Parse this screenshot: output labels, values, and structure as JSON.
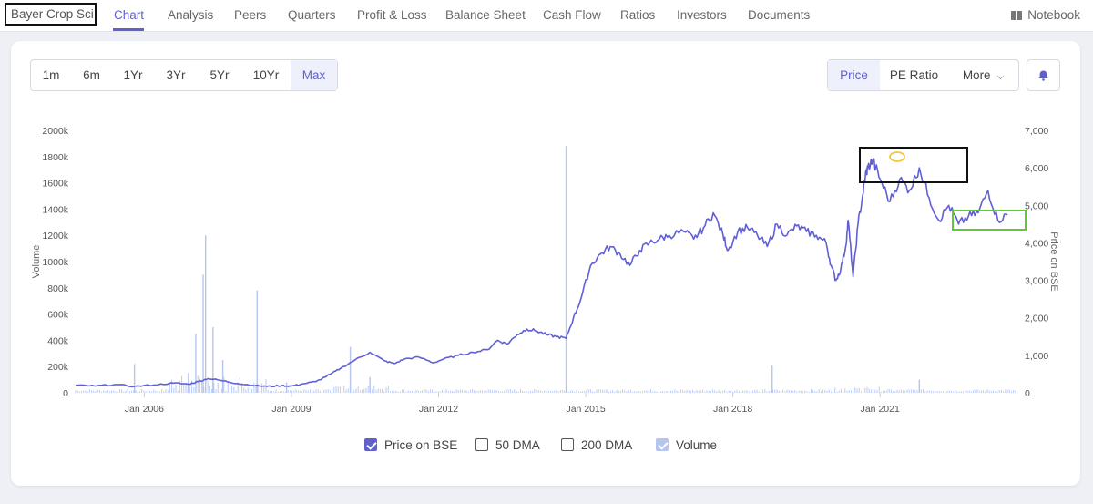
{
  "nav": {
    "company": "Bayer Crop Sci.",
    "items": [
      {
        "label": "Chart",
        "active": true
      },
      {
        "label": "Analysis"
      },
      {
        "label": "Peers"
      },
      {
        "label": "Quarters"
      },
      {
        "label": "Profit & Loss"
      },
      {
        "label": "Balance Sheet"
      },
      {
        "label": "Cash Flow"
      },
      {
        "label": "Ratios"
      },
      {
        "label": "Investors"
      },
      {
        "label": "Documents"
      }
    ],
    "notebook": "Notebook"
  },
  "ranges": [
    "1m",
    "6m",
    "1Yr",
    "3Yr",
    "5Yr",
    "10Yr",
    "Max"
  ],
  "active_range": "Max",
  "chart_types": [
    "Price",
    "PE Ratio",
    "More"
  ],
  "active_chart_type": "Price",
  "legend": {
    "price": "Price on BSE",
    "dma50": "50 DMA",
    "dma200": "200 DMA",
    "volume": "Volume"
  },
  "colors": {
    "accent": "#6161c9",
    "price_line": "#6060d6",
    "volume_bar": "#b5c5f0",
    "highlight_black": "#111111",
    "highlight_green": "#5ec937",
    "highlight_yellow": "#f2c744"
  },
  "icons": {
    "bell": "bell-icon",
    "chevron": "chevron-down-icon",
    "notebook": "notebook-icon",
    "checkbox": "check-icon"
  },
  "chart_data": {
    "type": "line",
    "title": "",
    "xlabel": "",
    "ylabel": "Price on BSE",
    "y2label": "Volume",
    "x_ticks": [
      "Jan 2006",
      "Jan 2009",
      "Jan 2012",
      "Jan 2015",
      "Jan 2018",
      "Jan 2021"
    ],
    "xlim": [
      2004.6,
      2023.8
    ],
    "price_ticks": [
      0,
      1000,
      2000,
      3000,
      4000,
      5000,
      6000,
      7000
    ],
    "price_tick_labels": [
      "0",
      "1,000",
      "2,000",
      "3,000",
      "4,000",
      "5,000",
      "6,000",
      "7,000"
    ],
    "ylim": [
      0,
      7000
    ],
    "volume_ticks": [
      0,
      200000,
      400000,
      600000,
      800000,
      1000000,
      1200000,
      1400000,
      1600000,
      1800000,
      2000000
    ],
    "volume_tick_labels": [
      "0",
      "200k",
      "400k",
      "600k",
      "800k",
      "1000k",
      "1200k",
      "1400k",
      "1600k",
      "1800k",
      "2000k"
    ],
    "volume_lim": [
      0,
      2000000
    ],
    "grid": false,
    "legend_position": "bottom",
    "series": [
      {
        "name": "Price on BSE",
        "x": [
          2004.6,
          2005.0,
          2005.4,
          2005.8,
          2006.2,
          2006.6,
          2006.9,
          2007.1,
          2007.3,
          2007.6,
          2007.9,
          2008.2,
          2008.5,
          2008.8,
          2009.0,
          2009.2,
          2009.5,
          2009.8,
          2010.0,
          2010.3,
          2010.6,
          2010.9,
          2011.1,
          2011.3,
          2011.6,
          2011.9,
          2012.1,
          2012.4,
          2012.7,
          2013.0,
          2013.2,
          2013.4,
          2013.6,
          2013.8,
          2014.0,
          2014.2,
          2014.4,
          2014.6,
          2014.75,
          2014.9,
          2015.1,
          2015.3,
          2015.5,
          2015.7,
          2015.9,
          2016.1,
          2016.3,
          2016.5,
          2016.7,
          2017.0,
          2017.2,
          2017.4,
          2017.6,
          2017.8,
          2017.9,
          2018.1,
          2018.3,
          2018.5,
          2018.7,
          2018.9,
          2019.1,
          2019.3,
          2019.5,
          2019.7,
          2019.9,
          2020.0,
          2020.1,
          2020.2,
          2020.3,
          2020.35,
          2020.45,
          2020.55,
          2020.65,
          2020.7,
          2020.75,
          2020.85,
          2021.0,
          2021.2,
          2021.4,
          2021.6,
          2021.8,
          2022.0,
          2022.2,
          2022.4,
          2022.6,
          2022.8,
          2023.0,
          2023.2,
          2023.4,
          2023.6
        ],
        "y": [
          200,
          180,
          220,
          170,
          210,
          260,
          230,
          300,
          380,
          320,
          250,
          200,
          170,
          190,
          180,
          230,
          300,
          500,
          650,
          880,
          1080,
          850,
          780,
          900,
          950,
          800,
          900,
          1000,
          1080,
          1150,
          1400,
          1300,
          1550,
          1700,
          1650,
          1550,
          1500,
          1450,
          2000,
          2500,
          3400,
          3700,
          3900,
          3700,
          3400,
          3800,
          4000,
          4100,
          4200,
          4300,
          4100,
          4400,
          4800,
          4200,
          3800,
          4300,
          4400,
          4200,
          3900,
          4500,
          4200,
          4450,
          4300,
          4200,
          4000,
          3400,
          3000,
          3300,
          3900,
          4600,
          3100,
          4500,
          5300,
          5800,
          6000,
          6200,
          5700,
          5100,
          5700,
          5400,
          6000,
          5200,
          4600,
          5000,
          4500,
          4700,
          4800,
          5400,
          4600,
          4750
        ]
      }
    ],
    "volume": {
      "name": "Volume",
      "spikes": [
        {
          "x": 2005.8,
          "v": 220000
        },
        {
          "x": 2006.9,
          "v": 150000
        },
        {
          "x": 2007.05,
          "v": 450000
        },
        {
          "x": 2007.2,
          "v": 900000
        },
        {
          "x": 2007.25,
          "v": 1200000
        },
        {
          "x": 2007.4,
          "v": 500000
        },
        {
          "x": 2007.6,
          "v": 250000
        },
        {
          "x": 2008.3,
          "v": 780000
        },
        {
          "x": 2008.9,
          "v": 80000
        },
        {
          "x": 2010.2,
          "v": 350000
        },
        {
          "x": 2010.6,
          "v": 120000
        },
        {
          "x": 2014.6,
          "v": 1880000
        },
        {
          "x": 2018.8,
          "v": 210000
        },
        {
          "x": 2021.8,
          "v": 100000
        }
      ]
    }
  }
}
